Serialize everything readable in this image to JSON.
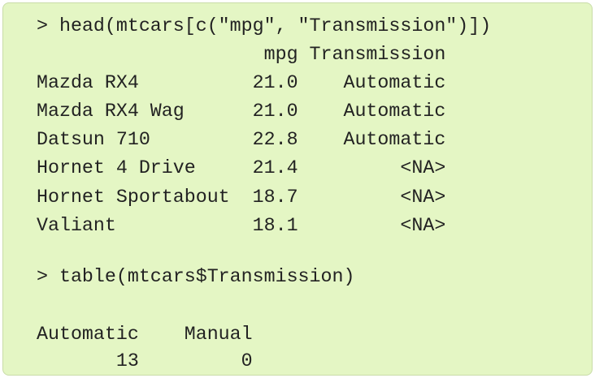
{
  "console": {
    "lines": [
      "> head(mtcars[c(\"mpg\", \"Transmission\")])",
      "                    mpg Transmission",
      "Mazda RX4          21.0    Automatic",
      "Mazda RX4 Wag      21.0    Automatic",
      "Datsun 710         22.8    Automatic",
      "Hornet 4 Drive     21.4         <NA>",
      "Hornet Sportabout  18.7         <NA>",
      "Valiant            18.1         <NA>",
      "",
      "> table(mtcars$Transmission)",
      "",
      "Automatic    Manual ",
      "       13         0 "
    ]
  }
}
